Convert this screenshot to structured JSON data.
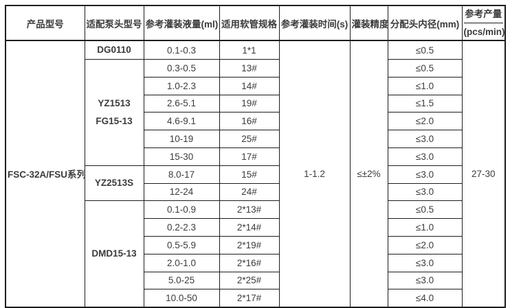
{
  "colors": {
    "border": "#1c1c1c",
    "text": "#3b3b3b",
    "background": "#ffffff"
  },
  "table": {
    "headers": [
      {
        "id": "product_model",
        "label": "产品型号"
      },
      {
        "id": "pump_model",
        "label": "适配泵头型号"
      },
      {
        "id": "fill_volume",
        "label": "参考灌装液量(ml)"
      },
      {
        "id": "tube_spec",
        "label": "适用软管规格"
      },
      {
        "id": "fill_time",
        "label": "参考灌装时间(s)"
      },
      {
        "id": "accuracy",
        "label": "灌装精度"
      },
      {
        "id": "head_diameter",
        "label": "分配头内径(mm)"
      },
      {
        "id": "output",
        "label": "参考产量",
        "label2": "(pcs/min)"
      }
    ],
    "product_model": "FSC-32A/FSU系列",
    "fill_time": "1-1.2",
    "accuracy": "≤±2%",
    "output": "27-30",
    "pump_groups": [
      {
        "model_lines": [
          "DG0110"
        ],
        "rows": [
          {
            "volume": "0.1-0.3",
            "tube": "1*1",
            "diameter": "≤0.5"
          }
        ]
      },
      {
        "model_lines": [
          "YZ1513",
          "FG15-13"
        ],
        "rows": [
          {
            "volume": "0.3-0.5",
            "tube": "13#",
            "diameter": "≤0.5"
          },
          {
            "volume": "1.0-2.3",
            "tube": "14#",
            "diameter": "≤1.0"
          },
          {
            "volume": "2.6-5.1",
            "tube": "19#",
            "diameter": "≤1.5"
          },
          {
            "volume": "4.6-9.1",
            "tube": "16#",
            "diameter": "≤2.0"
          },
          {
            "volume": "10-19",
            "tube": "25#",
            "diameter": "≤3.0"
          },
          {
            "volume": "15-30",
            "tube": "17#",
            "diameter": "≤3.0"
          }
        ]
      },
      {
        "model_lines": [
          "YZ2513S"
        ],
        "rows": [
          {
            "volume": "8.0-17",
            "tube": "15#",
            "diameter": "≤3.0"
          },
          {
            "volume": "12-24",
            "tube": "24#",
            "diameter": "≤3.0"
          }
        ]
      },
      {
        "model_lines": [
          "DMD15-13"
        ],
        "rows": [
          {
            "volume": "0.1-0.9",
            "tube": "2*13#",
            "diameter": "≤0.5"
          },
          {
            "volume": "0.2-2.3",
            "tube": "2*14#",
            "diameter": "≤1.0"
          },
          {
            "volume": "0.5-5.9",
            "tube": "2*19#",
            "diameter": "≤2.0"
          },
          {
            "volume": "2.0-1.0",
            "tube": "2*16#",
            "diameter": "≤3.0"
          },
          {
            "volume": "5.0-25",
            "tube": "2*25#",
            "diameter": "≤3.0"
          },
          {
            "volume": "10.0-50",
            "tube": "2*17#",
            "diameter": "≤4.0"
          }
        ]
      }
    ]
  }
}
